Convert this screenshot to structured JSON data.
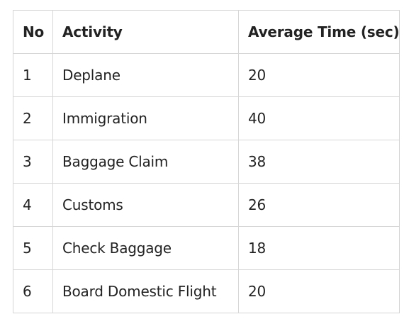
{
  "table": {
    "headers": [
      "No",
      "Activity",
      "Average Time (sec)"
    ],
    "rows": [
      [
        "1",
        "Deplane",
        "20"
      ],
      [
        "2",
        "Immigration",
        "40"
      ],
      [
        "3",
        "Baggage Claim",
        "38"
      ],
      [
        "4",
        "Customs",
        "26"
      ],
      [
        "5",
        "Check Baggage",
        "18"
      ],
      [
        "6",
        "Board Domestic Flight",
        "20"
      ]
    ]
  }
}
